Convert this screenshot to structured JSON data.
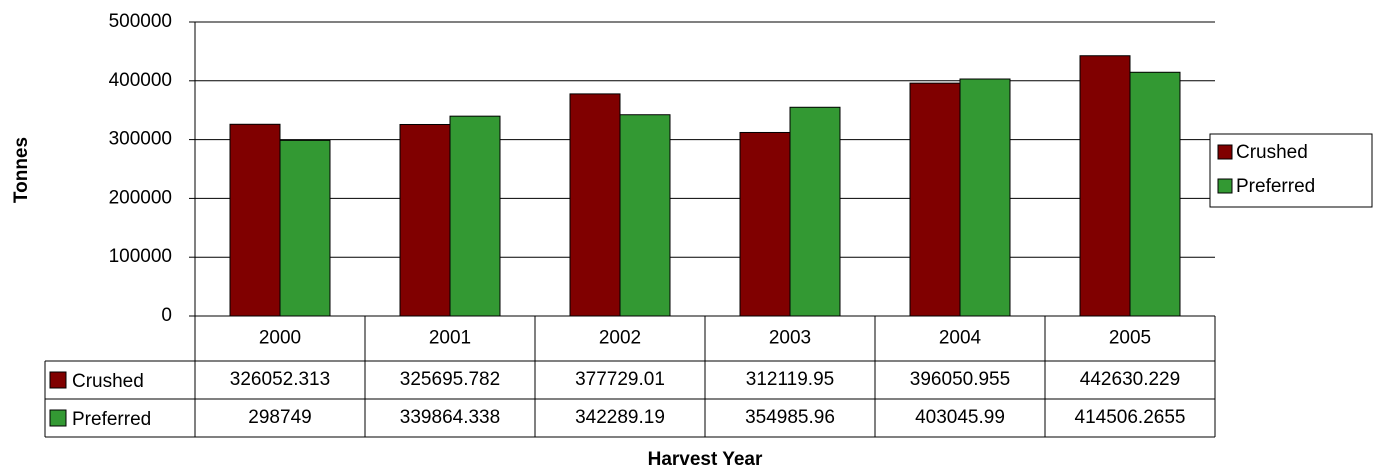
{
  "chart_data": {
    "type": "bar",
    "x_label": "Harvest Year",
    "y_label": "Tonnes",
    "categories": [
      "2000",
      "2001",
      "2002",
      "2003",
      "2004",
      "2005"
    ],
    "series": [
      {
        "name": "Crushed",
        "color": "#800000",
        "values": [
          326052.313,
          325695.782,
          377729.01,
          312119.95,
          396050.955,
          442630.229
        ]
      },
      {
        "name": "Preferred",
        "color": "#339933",
        "values": [
          298749,
          339864.338,
          342289.19,
          354985.96,
          403045.99,
          414506.2655
        ]
      }
    ],
    "ylim": [
      0,
      500000
    ],
    "yticks": [
      0,
      100000,
      200000,
      300000,
      400000,
      500000
    ],
    "grid": true,
    "legend": "right"
  }
}
